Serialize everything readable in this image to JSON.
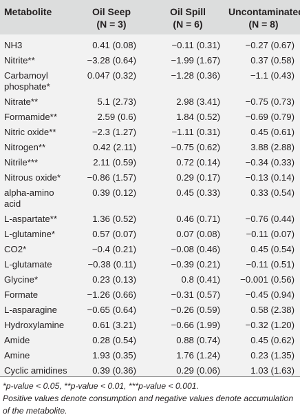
{
  "headers": {
    "metabolite": "Metabolite",
    "oil_seep": "Oil Seep",
    "oil_seep_n": "(N = 3)",
    "oil_spill": "Oil Spill",
    "oil_spill_n": "(N = 6)",
    "uncontaminated": "Uncontaminated",
    "uncontaminated_n": "(N = 8)"
  },
  "rows": [
    {
      "name": "NH3",
      "seep": "0.41 (0.08)",
      "spill": "−0.11 (0.31)",
      "unc": "−0.27 (0.67)"
    },
    {
      "name": "Nitrite**",
      "seep": "−3.28 (0.64)",
      "spill": "−1.99 (1.67)",
      "unc": "0.37 (0.58)"
    },
    {
      "name": "Carbamoyl phosphate*",
      "seep": "0.047 (0.32)",
      "spill": "−1.28 (0.36)",
      "unc": "−1.1 (0.43)"
    },
    {
      "name": "Nitrate**",
      "seep": "5.1 (2.73)",
      "spill": "2.98 (3.41)",
      "unc": "−0.75 (0.73)"
    },
    {
      "name": "Formamide**",
      "seep": "2.59 (0.6)",
      "spill": "1.84 (0.52)",
      "unc": "−0.69 (0.79)"
    },
    {
      "name": "Nitric oxide**",
      "seep": "−2.3 (1.27)",
      "spill": "−1.11 (0.31)",
      "unc": "0.45 (0.61)"
    },
    {
      "name": "Nitrogen**",
      "seep": "0.42 (2.11)",
      "spill": "−0.75 (0.62)",
      "unc": "3.88 (2.88)"
    },
    {
      "name": "Nitrile***",
      "seep": "2.11 (0.59)",
      "spill": "0.72 (0.14)",
      "unc": "−0.34 (0.33)"
    },
    {
      "name": "Nitrous oxide*",
      "seep": "−0.86 (1.57)",
      "spill": "0.29 (0.17)",
      "unc": "−0.13 (0.14)"
    },
    {
      "name": "alpha-amino acid",
      "seep": "0.39 (0.12)",
      "spill": "0.45 (0.33)",
      "unc": "0.33 (0.54)"
    },
    {
      "name": "L-aspartate**",
      "seep": "1.36 (0.52)",
      "spill": "0.46 (0.71)",
      "unc": "−0.76 (0.44)"
    },
    {
      "name": "L-glutamine*",
      "seep": "0.57 (0.07)",
      "spill": "0.07 (0.08)",
      "unc": "−0.11 (0.07)"
    },
    {
      "name": "CO2*",
      "seep": "−0.4 (0.21)",
      "spill": "−0.08 (0.46)",
      "unc": "0.45 (0.54)"
    },
    {
      "name": "L-glutamate",
      "seep": "−0.38 (0.11)",
      "spill": "−0.39 (0.21)",
      "unc": "−0.11 (0.51)"
    },
    {
      "name": "Glycine*",
      "seep": "0.23 (0.13)",
      "spill": "0.8 (0.41)",
      "unc": "−0.001 (0.56)"
    },
    {
      "name": "Formate",
      "seep": "−1.26 (0.66)",
      "spill": "−0.31 (0.57)",
      "unc": "−0.45 (0.94)"
    },
    {
      "name": "L-asparagine",
      "seep": "−0.65 (0.64)",
      "spill": "−0.26 (0.59)",
      "unc": "0.58 (2.38)"
    },
    {
      "name": "Hydroxylamine",
      "seep": "0.61 (3.21)",
      "spill": "−0.66 (1.99)",
      "unc": "−0.32 (1.20)"
    },
    {
      "name": "Amide",
      "seep": "0.28 (0.54)",
      "spill": "0.88 (0.74)",
      "unc": "0.45 (0.62)"
    },
    {
      "name": "Amine",
      "seep": "1.93 (0.35)",
      "spill": "1.76 (1.24)",
      "unc": "0.23 (1.35)"
    },
    {
      "name": "Cyclic amidines",
      "seep": "0.39 (0.36)",
      "spill": "0.29 (0.06)",
      "unc": "1.03 (1.63)"
    }
  ],
  "footnotes": {
    "significance": "*p-value < 0.05, **p-value < 0.01, ***p-value < 0.001.",
    "note": "Positive values denote consumption and negative values denote accumulation of the metabolite."
  }
}
